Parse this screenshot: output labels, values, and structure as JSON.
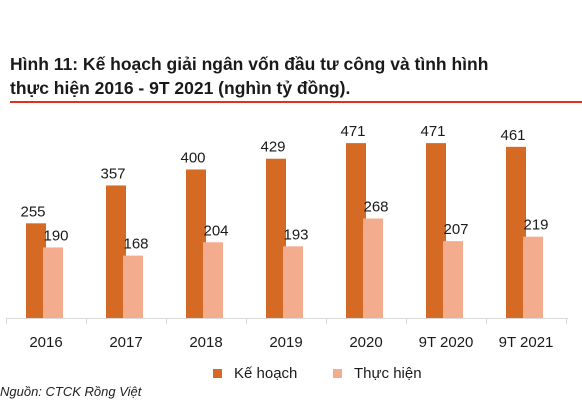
{
  "figure": {
    "title_line1": "Hình 11: Kế hoạch giải ngân vốn đầu tư công và tình hình",
    "title_line2": "thực hiện 2016 - 9T 2021 (nghìn tỷ đồng).",
    "source": "Nguồn: CTCK Rồng Việt"
  },
  "colors": {
    "plan": "#D46A24",
    "actual": "#F4AC8F",
    "rule": "#E0301E",
    "axis": "#D9D9D9"
  },
  "chart_data": {
    "type": "bar",
    "title": "",
    "xlabel": "",
    "ylabel": "",
    "ylim": [
      0,
      500
    ],
    "grid": false,
    "legend_position": "bottom",
    "categories": [
      "2016",
      "2017",
      "2018",
      "2019",
      "2020",
      "9T 2020",
      "9T 2021"
    ],
    "series": [
      {
        "name": "Kế hoạch",
        "values": [
          255,
          357,
          400,
          429,
          471,
          471,
          461
        ]
      },
      {
        "name": "Thực hiện",
        "values": [
          190,
          168,
          204,
          193,
          268,
          207,
          219
        ]
      }
    ]
  }
}
